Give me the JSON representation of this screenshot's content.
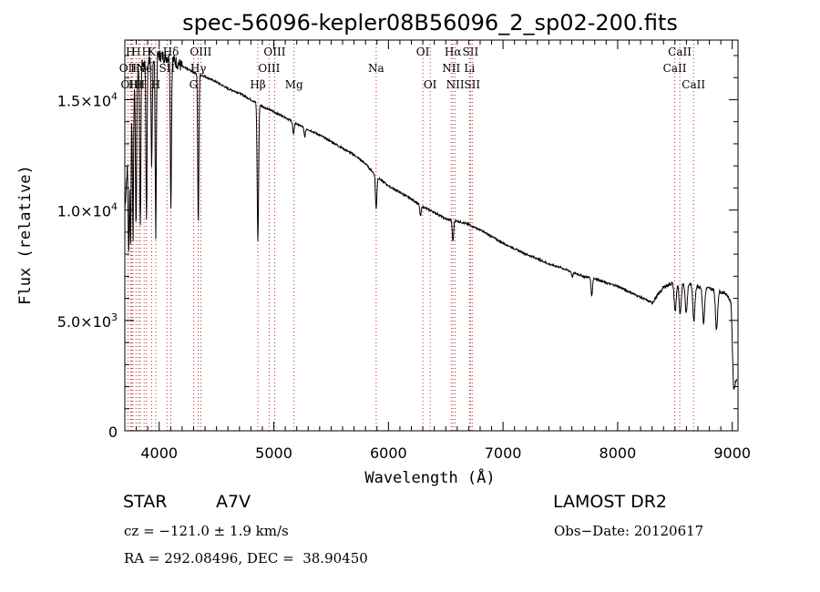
{
  "chart_data": {
    "type": "line",
    "title": "spec-56096-kepler08B56096_2_sp02-200.fits",
    "xlabel": "Wavelength (Å)",
    "ylabel": "Flux (relative)",
    "xlim": [
      3700,
      9050
    ],
    "ylim": [
      0,
      17700
    ],
    "xticks": [
      4000,
      5000,
      6000,
      7000,
      8000,
      9000
    ],
    "xtick_labels": [
      "4000",
      "5000",
      "6000",
      "7000",
      "8000",
      "9000"
    ],
    "yticks": [
      0,
      5000,
      10000,
      15000
    ],
    "ytick_labels": [
      {
        "base": "0",
        "exp": ""
      },
      {
        "base": "5.0×10",
        "exp": "3"
      },
      {
        "base": "1.0×10",
        "exp": "4"
      },
      {
        "base": "1.5×10",
        "exp": "4"
      }
    ],
    "grid": false,
    "continuum": [
      [
        3700,
        10000
      ],
      [
        3760,
        15600
      ],
      [
        3850,
        16700
      ],
      [
        4000,
        17000
      ],
      [
        4100,
        16900
      ],
      [
        4200,
        16500
      ],
      [
        4300,
        16250
      ],
      [
        4400,
        16050
      ],
      [
        4500,
        15800
      ],
      [
        4600,
        15500
      ],
      [
        4700,
        15300
      ],
      [
        4800,
        15000
      ],
      [
        4900,
        14700
      ],
      [
        5000,
        14450
      ],
      [
        5100,
        14200
      ],
      [
        5200,
        13900
      ],
      [
        5300,
        13650
      ],
      [
        5400,
        13400
      ],
      [
        5500,
        13100
      ],
      [
        5600,
        12800
      ],
      [
        5700,
        12500
      ],
      [
        5800,
        12100
      ],
      [
        5900,
        11500
      ],
      [
        6000,
        11100
      ],
      [
        6100,
        10800
      ],
      [
        6200,
        10500
      ],
      [
        6300,
        10150
      ],
      [
        6400,
        9900
      ],
      [
        6500,
        9600
      ],
      [
        6600,
        9500
      ],
      [
        6700,
        9350
      ],
      [
        6800,
        9100
      ],
      [
        6900,
        8800
      ],
      [
        7000,
        8500
      ],
      [
        7100,
        8250
      ],
      [
        7200,
        8000
      ],
      [
        7300,
        7800
      ],
      [
        7400,
        7550
      ],
      [
        7500,
        7400
      ],
      [
        7600,
        7200
      ],
      [
        7700,
        7000
      ],
      [
        7800,
        6900
      ],
      [
        7900,
        6700
      ],
      [
        8000,
        6550
      ],
      [
        8100,
        6300
      ],
      [
        8200,
        6050
      ],
      [
        8300,
        5800
      ],
      [
        8400,
        6500
      ],
      [
        8500,
        6750
      ],
      [
        8600,
        6700
      ],
      [
        8700,
        6550
      ],
      [
        8800,
        6450
      ],
      [
        8900,
        6300
      ],
      [
        8950,
        6200
      ],
      [
        8990,
        5800
      ],
      [
        9010,
        2600
      ],
      [
        9040,
        2300
      ]
    ],
    "absorption_lines": [
      {
        "wave": 3734,
        "depth": 0.4
      },
      {
        "wave": 3750,
        "depth": 0.42
      },
      {
        "wave": 3771,
        "depth": 0.45
      },
      {
        "wave": 3798,
        "depth": 0.43
      },
      {
        "wave": 3835,
        "depth": 0.45
      },
      {
        "wave": 3889,
        "depth": 0.43
      },
      {
        "wave": 3934,
        "depth": 0.3
      },
      {
        "wave": 3970,
        "depth": 0.47
      },
      {
        "wave": 4102,
        "depth": 0.4
      },
      {
        "wave": 4341,
        "depth": 0.42
      },
      {
        "wave": 4861,
        "depth": 0.42
      },
      {
        "wave": 5172,
        "depth": 0.04
      },
      {
        "wave": 5270,
        "depth": 0.03
      },
      {
        "wave": 5893,
        "depth": 0.13
      },
      {
        "wave": 6280,
        "depth": 0.05
      },
      {
        "wave": 6563,
        "depth": 0.1
      },
      {
        "wave": 7605,
        "depth": 0.03
      },
      {
        "wave": 7774,
        "depth": 0.12
      },
      {
        "wave": 8502,
        "depth": 0.2
      },
      {
        "wave": 8545,
        "depth": 0.22
      },
      {
        "wave": 8598,
        "depth": 0.2
      },
      {
        "wave": 8665,
        "depth": 0.25
      },
      {
        "wave": 8750,
        "depth": 0.25
      },
      {
        "wave": 8863,
        "depth": 0.28
      },
      {
        "wave": 9015,
        "depth": 0.25
      }
    ],
    "line_markers": [
      {
        "wave": 3727,
        "label": "OII",
        "row": 1
      },
      {
        "wave": 3750,
        "label": "H",
        "row": 0
      },
      {
        "wave": 3760,
        "label": "OIII",
        "row": 2
      },
      {
        "wave": 3771,
        "label": "H",
        "row": 2
      },
      {
        "wave": 3798,
        "label": "H",
        "row": 0
      },
      {
        "wave": 3820,
        "label": "He",
        "row": 1
      },
      {
        "wave": 3835,
        "label": "H",
        "row": 2
      },
      {
        "wave": 3869,
        "label": "Ne",
        "row": 1
      },
      {
        "wave": 3889,
        "label": "H",
        "row": 0
      },
      {
        "wave": 3934,
        "label": "K",
        "row": 0
      },
      {
        "wave": 3970,
        "label": "H",
        "row": 2
      },
      {
        "wave": 4068,
        "label": "SII",
        "row": 1
      },
      {
        "wave": 4102,
        "label": "Hδ",
        "row": 0
      },
      {
        "wave": 4300,
        "label": "G",
        "row": 2
      },
      {
        "wave": 4341,
        "label": "Hγ",
        "row": 1
      },
      {
        "wave": 4363,
        "label": "OIII",
        "row": 0
      },
      {
        "wave": 4861,
        "label": "Hβ",
        "row": 2
      },
      {
        "wave": 4959,
        "label": "OIII",
        "row": 1
      },
      {
        "wave": 5007,
        "label": "OIII",
        "row": 0
      },
      {
        "wave": 5176,
        "label": "Mg",
        "row": 2
      },
      {
        "wave": 5893,
        "label": "Na",
        "row": 1
      },
      {
        "wave": 6300,
        "label": "OI",
        "row": 0
      },
      {
        "wave": 6364,
        "label": "OI",
        "row": 2
      },
      {
        "wave": 6548,
        "label": "NII",
        "row": 1
      },
      {
        "wave": 6563,
        "label": "Hα",
        "row": 0
      },
      {
        "wave": 6583,
        "label": "NII",
        "row": 2
      },
      {
        "wave": 6707,
        "label": "Li",
        "row": 1
      },
      {
        "wave": 6716,
        "label": "SII",
        "row": 0
      },
      {
        "wave": 6731,
        "label": "SII",
        "row": 2
      },
      {
        "wave": 8498,
        "label": "CaII",
        "row": 1
      },
      {
        "wave": 8542,
        "label": "CaII",
        "row": 0
      },
      {
        "wave": 8662,
        "label": "CaII",
        "row": 2
      }
    ]
  },
  "info": {
    "object_type": "STAR",
    "subclass": "A7V",
    "survey": "LAMOST DR2",
    "cz": "cz = −121.0 ± 1.9 km/s",
    "obs_date": "Obs−Date: 20120617",
    "coords": "RA = 292.08496, DEC =  38.90450"
  }
}
